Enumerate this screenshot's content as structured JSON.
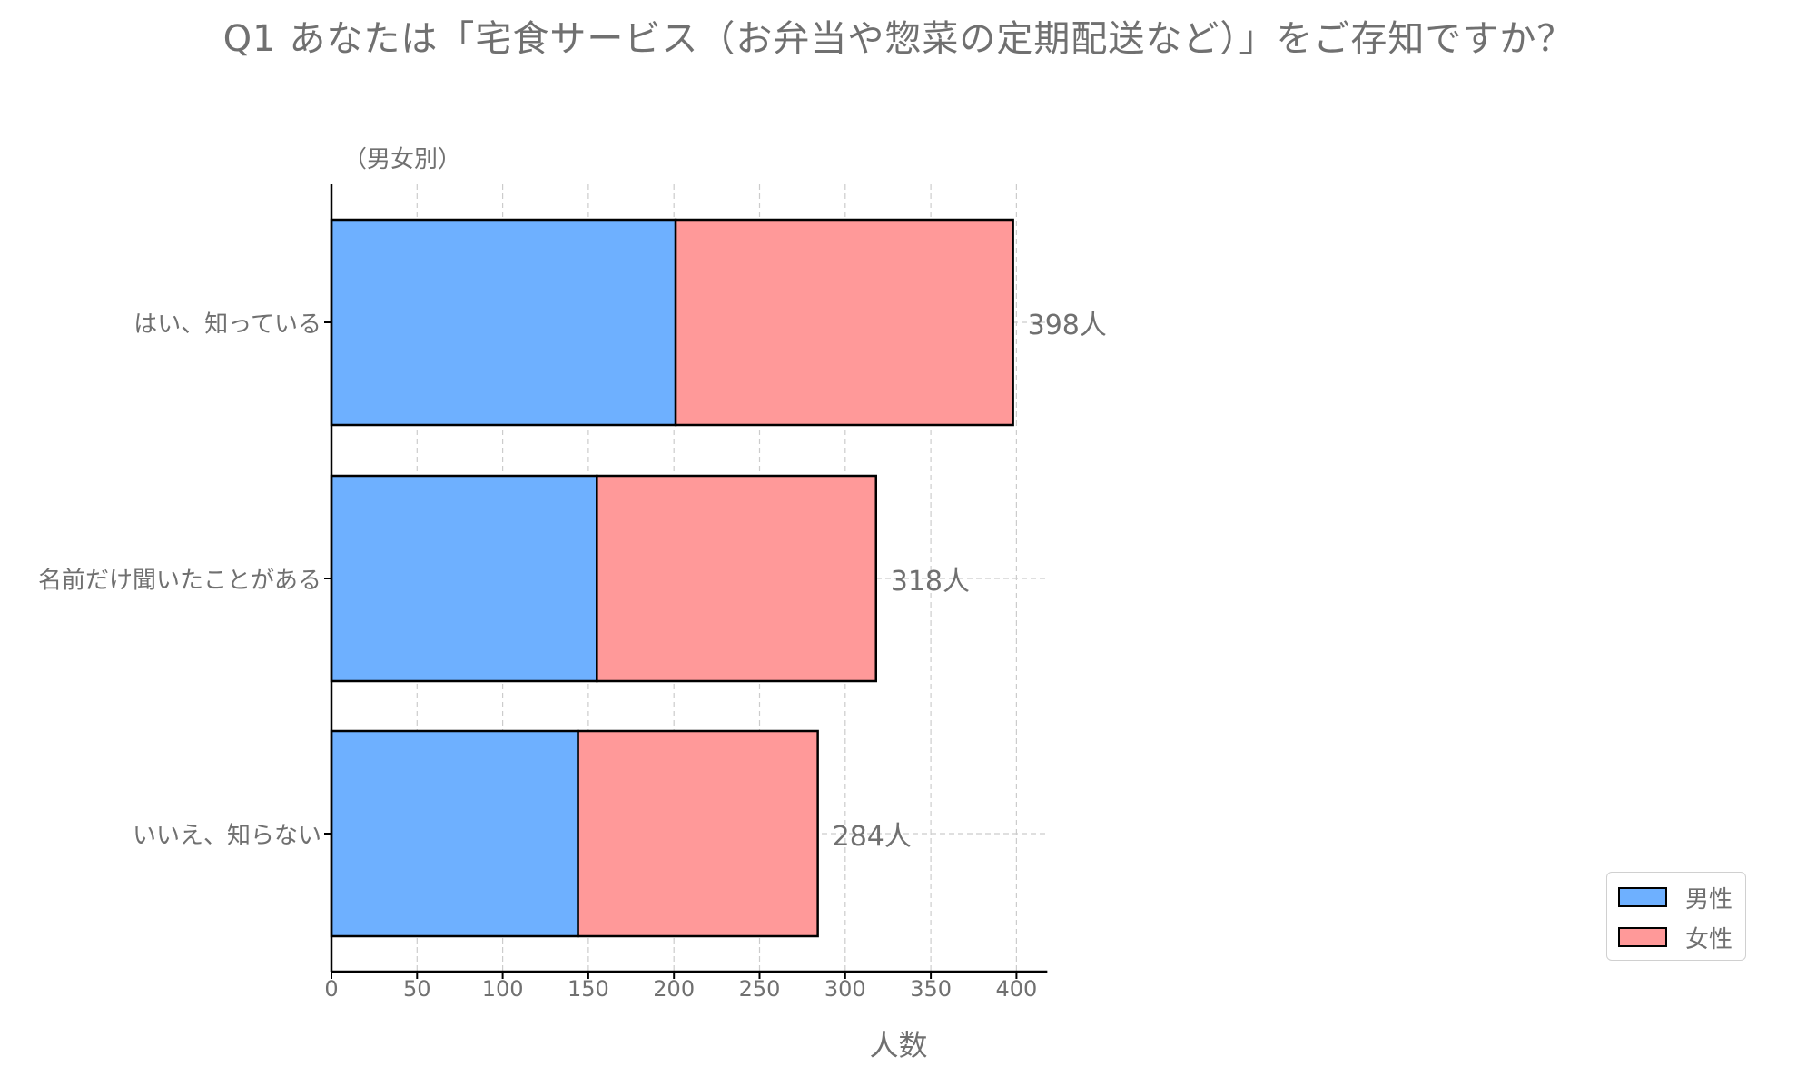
{
  "title": "Q1 あなたは「宅食サービス（お弁当や惣菜の定期配送など）」をご存知ですか？",
  "subtitle": "（男女別）",
  "chart_data": {
    "type": "bar",
    "orientation": "horizontal",
    "stacked": true,
    "categories": [
      "はい、知っている",
      "名前だけ聞いたことがある",
      "いいえ、知らない"
    ],
    "series": [
      {
        "name": "男性",
        "values": [
          201,
          155,
          144
        ],
        "color": "#6eb0ff"
      },
      {
        "name": "女性",
        "values": [
          197,
          163,
          140
        ],
        "color": "#ff9999"
      }
    ],
    "totals": [
      398,
      318,
      284
    ],
    "total_labels": [
      "398人",
      "318人",
      "284人"
    ],
    "xlabel": "人数",
    "xlim": [
      0,
      418
    ],
    "xticks": [
      0,
      50,
      100,
      150,
      200,
      250,
      300,
      350,
      400
    ],
    "grid": true,
    "legend_position": "bottom-right"
  }
}
